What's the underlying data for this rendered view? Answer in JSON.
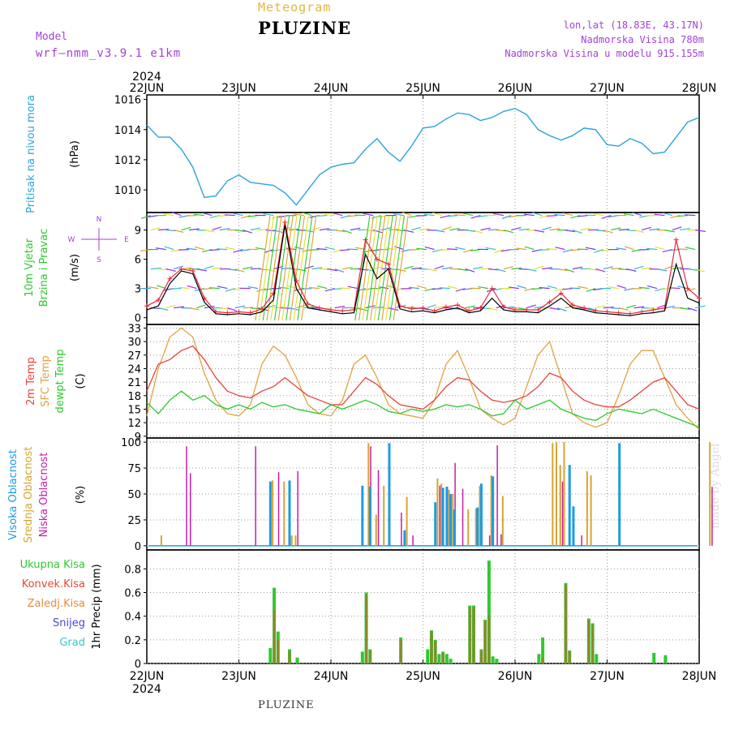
{
  "header": {
    "meteogram": "Meteogram",
    "station": "PLUZINE",
    "model_label": "Model",
    "model_name": "wrf—nmm_v3.9.1  e1km",
    "lonlat": "lon,lat (18.83E, 43.17N)",
    "elevation": "Nadmorska Visina 780m",
    "model_elevation": "Nadmorska Visina u modelu 915.155m",
    "year": "2024",
    "bottom_station": "PLUZINE",
    "watermark": "made by Angel"
  },
  "colors": {
    "pressure": "#2aa4dc",
    "wind_speed": "#000000",
    "wind_gust": "#e8253c",
    "temp2m": "#e8423c",
    "sfc_temp": "#e2a23f",
    "dewpoint": "#2dc82d",
    "cloud_high": "#1c9be6",
    "cloud_mid": "#d8a431",
    "cloud_low": "#c61ea8",
    "precip_total": "#30c830",
    "precip_conv": "#e24a3c",
    "precip_frozen": "#e88d3a",
    "snow": "#4848d8",
    "hail": "#38c8c8"
  },
  "chart_data": [
    {
      "type": "line",
      "id": "pressure",
      "ylabel_main": "Pritisak na nivou mora",
      "ylabel_unit": "(hPa)",
      "x_ticks": [
        "22JUN",
        "23JUN",
        "24JUN",
        "25JUN",
        "26JUN",
        "27JUN",
        "28JUN"
      ],
      "ylim": [
        1008.5,
        1016.3
      ],
      "y_ticks": [
        "1010",
        "1012",
        "1014",
        "1016"
      ],
      "x_hours": [
        0,
        3,
        6,
        9,
        12,
        15,
        18,
        21,
        24,
        27,
        30,
        33,
        36,
        39,
        42,
        45,
        48,
        51,
        54,
        57,
        60,
        63,
        66,
        69,
        72,
        75,
        78,
        81,
        84,
        87,
        90,
        93,
        96,
        99,
        102,
        105,
        108,
        111,
        114,
        117,
        120,
        123,
        126,
        129,
        132,
        135,
        138,
        141,
        144
      ],
      "values": [
        1014.3,
        1013.5,
        1013.5,
        1012.7,
        1011.5,
        1009.5,
        1009.6,
        1010.6,
        1011.0,
        1010.5,
        1010.4,
        1010.3,
        1009.8,
        1009.0,
        1010.0,
        1011.0,
        1011.5,
        1011.7,
        1011.8,
        1012.7,
        1013.4,
        1012.5,
        1011.9,
        1012.9,
        1014.1,
        1014.2,
        1014.7,
        1015.1,
        1015.0,
        1014.6,
        1014.8,
        1015.2,
        1015.4,
        1015.0,
        1014.0,
        1013.6,
        1013.3,
        1013.6,
        1014.1,
        1014.0,
        1013.0,
        1012.9,
        1013.4,
        1013.1,
        1012.4,
        1012.5,
        1013.5,
        1014.5,
        1014.8
      ]
    },
    {
      "type": "line",
      "id": "wind",
      "ylabel_main": "10m Vjetar",
      "ylabel_sub": "Brzina i Pravac",
      "ylabel_unit": "(m/s)",
      "compass": [
        "N",
        "W",
        "E",
        "S"
      ],
      "ylim": [
        -0.7,
        10.8
      ],
      "y_ticks": [
        "0",
        "3",
        "6",
        "9"
      ],
      "barb_levels": [
        1,
        3,
        5,
        7,
        9,
        10.5
      ],
      "x_hours": [
        0,
        3,
        6,
        9,
        12,
        15,
        18,
        21,
        24,
        27,
        30,
        33,
        36,
        39,
        42,
        45,
        48,
        51,
        54,
        57,
        60,
        63,
        66,
        69,
        72,
        75,
        78,
        81,
        84,
        87,
        90,
        93,
        96,
        99,
        102,
        105,
        108,
        111,
        114,
        117,
        120,
        123,
        126,
        129,
        132,
        135,
        138,
        141,
        144
      ],
      "speed": [
        0.8,
        1.2,
        3.5,
        4.8,
        4.5,
        1.6,
        0.4,
        0.3,
        0.4,
        0.3,
        0.6,
        1.8,
        9.5,
        3.0,
        1.0,
        0.8,
        0.6,
        0.4,
        0.5,
        6.5,
        4.0,
        5.0,
        0.9,
        0.6,
        0.7,
        0.5,
        0.8,
        1.0,
        0.5,
        0.7,
        2.0,
        0.8,
        0.6,
        0.6,
        0.5,
        1.2,
        2.0,
        1.0,
        0.8,
        0.5,
        0.4,
        0.3,
        0.2,
        0.4,
        0.5,
        0.7,
        5.5,
        2.0,
        1.5
      ],
      "gust": [
        1.2,
        1.8,
        4.0,
        5.0,
        4.8,
        2.0,
        0.6,
        0.5,
        0.6,
        0.5,
        0.9,
        2.5,
        9.8,
        3.8,
        1.4,
        1.0,
        0.8,
        0.7,
        0.8,
        8.0,
        6.0,
        5.5,
        1.2,
        0.9,
        1.0,
        0.7,
        1.1,
        1.3,
        0.7,
        1.0,
        3.0,
        1.1,
        0.8,
        0.8,
        0.8,
        1.6,
        2.5,
        1.3,
        1.0,
        0.7,
        0.6,
        0.5,
        0.4,
        0.6,
        0.8,
        1.0,
        8.0,
        3.0,
        2.0
      ]
    },
    {
      "type": "line",
      "id": "temperature",
      "ylabel_series": [
        "2m Temp",
        "SFC Temp",
        "dewpt Temp"
      ],
      "ylabel_unit": "(C)",
      "ylim": [
        8.6,
        33.8
      ],
      "y_ticks": [
        "9",
        "12",
        "15",
        "18",
        "21",
        "24",
        "27",
        "30",
        "33"
      ],
      "x_hours": [
        0,
        3,
        6,
        9,
        12,
        15,
        18,
        21,
        24,
        27,
        30,
        33,
        36,
        39,
        42,
        45,
        48,
        51,
        54,
        57,
        60,
        63,
        66,
        69,
        72,
        75,
        78,
        81,
        84,
        87,
        90,
        93,
        96,
        99,
        102,
        105,
        108,
        111,
        114,
        117,
        120,
        123,
        126,
        129,
        132,
        135,
        138,
        141,
        144
      ],
      "t2m": [
        19.0,
        25.0,
        26.0,
        28.0,
        29.0,
        26.0,
        22.0,
        19.0,
        18.0,
        17.5,
        19.0,
        20.0,
        22.0,
        20.0,
        18.0,
        17.0,
        16.0,
        16.0,
        19.0,
        22.0,
        20.5,
        18.0,
        16.0,
        15.5,
        15.0,
        17.0,
        20.0,
        22.0,
        21.5,
        19.0,
        17.0,
        16.5,
        17.0,
        18.0,
        20.0,
        23.0,
        22.0,
        19.0,
        17.0,
        16.0,
        15.5,
        15.5,
        17.0,
        19.0,
        21.0,
        22.0,
        19.0,
        16.0,
        15.0
      ],
      "sfc": [
        13.5,
        24.0,
        31.0,
        33.0,
        31.0,
        23.0,
        17.0,
        14.0,
        13.5,
        16.0,
        25.0,
        29.0,
        27.0,
        22.0,
        16.0,
        14.0,
        13.5,
        17.0,
        25.0,
        27.0,
        22.0,
        16.0,
        14.0,
        13.5,
        13.0,
        17.0,
        25.0,
        28.0,
        22.0,
        15.0,
        13.0,
        11.5,
        13.0,
        20.0,
        27.0,
        30.0,
        22.0,
        14.0,
        12.0,
        11.0,
        12.0,
        18.0,
        25.0,
        28.0,
        28.0,
        22.0,
        16.0,
        13.0,
        10.5
      ],
      "dew": [
        16.5,
        14.0,
        17.0,
        19.0,
        17.0,
        18.0,
        16.0,
        15.0,
        16.0,
        15.0,
        16.5,
        15.5,
        16.0,
        15.0,
        14.5,
        14.0,
        16.0,
        15.0,
        16.0,
        17.0,
        16.0,
        14.5,
        14.0,
        15.0,
        14.5,
        15.0,
        16.0,
        15.5,
        16.0,
        15.0,
        13.5,
        14.0,
        17.0,
        15.0,
        16.0,
        17.0,
        15.0,
        14.0,
        13.0,
        12.5,
        14.0,
        15.0,
        14.5,
        14.0,
        15.0,
        14.0,
        13.0,
        12.0,
        11.0
      ]
    },
    {
      "type": "bar",
      "id": "clouds",
      "ylabel_series": [
        "Visoka Oblacnost",
        "Srednja Oblacnost",
        "Niska Oblacnost"
      ],
      "ylabel_unit": "(%)",
      "ylim": [
        -4,
        104
      ],
      "y_ticks": [
        "0",
        "25",
        "50",
        "75",
        "100"
      ],
      "high": [
        [
          32,
          62
        ],
        [
          37,
          63
        ],
        [
          56,
          58
        ],
        [
          58,
          57
        ],
        [
          63,
          99
        ],
        [
          67,
          15
        ],
        [
          75,
          42
        ],
        [
          77,
          56
        ],
        [
          78,
          57
        ],
        [
          79,
          50
        ],
        [
          80,
          35
        ],
        [
          86,
          37
        ],
        [
          87,
          60
        ],
        [
          90,
          67
        ],
        [
          110,
          78
        ],
        [
          111,
          38
        ],
        [
          123,
          99
        ]
      ],
      "mid": [
        [
          4,
          10
        ],
        [
          33,
          63
        ],
        [
          36,
          62
        ],
        [
          38,
          10
        ],
        [
          39,
          10
        ],
        [
          58,
          99
        ],
        [
          60,
          30
        ],
        [
          62,
          58
        ],
        [
          68,
          47
        ],
        [
          76,
          65
        ],
        [
          77,
          60
        ],
        [
          79,
          54
        ],
        [
          80,
          50
        ],
        [
          84,
          35
        ],
        [
          86,
          36
        ],
        [
          87,
          58
        ],
        [
          90,
          68
        ],
        [
          93,
          48
        ],
        [
          106,
          99
        ],
        [
          107,
          100
        ],
        [
          108,
          78
        ],
        [
          109,
          100
        ],
        [
          115,
          72
        ],
        [
          116,
          68
        ],
        [
          147,
          100
        ]
      ],
      "low": [
        [
          10,
          96
        ],
        [
          11,
          70
        ],
        [
          28,
          96
        ],
        [
          34,
          71
        ],
        [
          37,
          10
        ],
        [
          39,
          72
        ],
        [
          58,
          96
        ],
        [
          60,
          73
        ],
        [
          66,
          32
        ],
        [
          69,
          10
        ],
        [
          76,
          58
        ],
        [
          78,
          57
        ],
        [
          80,
          80
        ],
        [
          82,
          55
        ],
        [
          89,
          10
        ],
        [
          91,
          97
        ],
        [
          92,
          11
        ],
        [
          108,
          62
        ],
        [
          113,
          10
        ],
        [
          147,
          57
        ]
      ]
    },
    {
      "type": "bar",
      "id": "precip",
      "ylabel_series": [
        "Ukupna Kisa",
        "Konvek.Kisa",
        "Zaledj.Kisa",
        "Snijeg",
        "Grad"
      ],
      "ylabel_unit": "1hr Precip (mm)",
      "ylim": [
        0,
        0.96
      ],
      "y_ticks": [
        "0",
        "0.2",
        "0.4",
        "0.6",
        "0.8"
      ],
      "x_ticks": [
        "22JUN",
        "23JUN",
        "24JUN",
        "25JUN",
        "26JUN",
        "27JUN",
        "28JUN"
      ],
      "total": [
        [
          32,
          0.13
        ],
        [
          33,
          0.64
        ],
        [
          34,
          0.27
        ],
        [
          37,
          0.12
        ],
        [
          39,
          0.05
        ],
        [
          56,
          0.1
        ],
        [
          57,
          0.6
        ],
        [
          58,
          0.12
        ],
        [
          66,
          0.22
        ],
        [
          73,
          0.12
        ],
        [
          74,
          0.28
        ],
        [
          75,
          0.2
        ],
        [
          76,
          0.08
        ],
        [
          77,
          0.1
        ],
        [
          78,
          0.08
        ],
        [
          79,
          0.04
        ],
        [
          84,
          0.49
        ],
        [
          85,
          0.49
        ],
        [
          87,
          0.12
        ],
        [
          88,
          0.37
        ],
        [
          89,
          0.87
        ],
        [
          90,
          0.06
        ],
        [
          91,
          0.04
        ],
        [
          102,
          0.08
        ],
        [
          103,
          0.22
        ],
        [
          109,
          0.68
        ],
        [
          110,
          0.11
        ],
        [
          115,
          0.38
        ],
        [
          116,
          0.34
        ],
        [
          117,
          0.08
        ],
        [
          132,
          0.09
        ],
        [
          135,
          0.07
        ]
      ],
      "convective": [
        [
          33,
          0.45
        ],
        [
          34,
          0.2
        ],
        [
          37,
          0.1
        ],
        [
          57,
          0.58
        ],
        [
          58,
          0.11
        ],
        [
          66,
          0.2
        ],
        [
          74,
          0.27
        ],
        [
          75,
          0.19
        ],
        [
          77,
          0.09
        ],
        [
          84,
          0.48
        ],
        [
          85,
          0.47
        ],
        [
          87,
          0.11
        ],
        [
          88,
          0.36
        ],
        [
          89,
          0.4
        ],
        [
          103,
          0.05
        ],
        [
          109,
          0.66
        ],
        [
          110,
          0.1
        ],
        [
          115,
          0.37
        ],
        [
          116,
          0.33
        ]
      ]
    }
  ]
}
